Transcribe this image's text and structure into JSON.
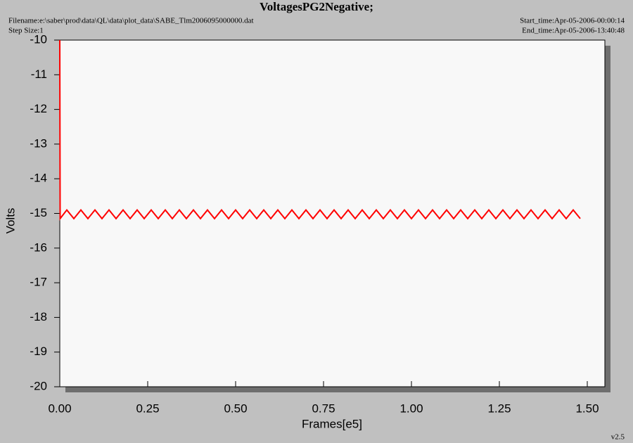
{
  "chart_data": {
    "type": "line",
    "title": "VoltagesPG2Negative;",
    "filename": "Filename:e:\\saber\\prod\\data\\QL\\data\\plot_data\\SABE_Tlm2006095000000.dat",
    "step_size": "Step Size:1",
    "start_time": "Start_time:Apr-05-2006-00:00:14",
    "end_time": "End_time:Apr-05-2006-13:40:48",
    "version": "v2.5",
    "x_label": "Frames[e5]",
    "y_label": "Volts",
    "xlim": [
      0,
      1.55
    ],
    "ylim": [
      -20,
      -10
    ],
    "xticks": [
      {
        "value": 0,
        "label": "0.00"
      },
      {
        "value": 0.25,
        "label": "0.25"
      },
      {
        "value": 0.5,
        "label": "0.50"
      },
      {
        "value": 0.75,
        "label": "0.75"
      },
      {
        "value": 1,
        "label": "1.00"
      },
      {
        "value": 1.25,
        "label": "1.25"
      },
      {
        "value": 1.5,
        "label": "1.50"
      }
    ],
    "yticks": [
      -10,
      -11,
      -12,
      -13,
      -14,
      -15,
      -16,
      -17,
      -18,
      -19,
      -20
    ],
    "x": [
      0,
      0.001,
      0.02,
      0.04,
      0.06,
      0.08,
      0.1,
      0.12,
      0.14,
      0.16,
      0.18,
      0.2,
      0.22,
      0.24,
      0.26,
      0.28,
      0.3,
      0.32,
      0.34,
      0.36,
      0.38,
      0.4,
      0.42,
      0.44,
      0.46,
      0.48,
      0.5,
      0.52,
      0.54,
      0.56,
      0.58,
      0.6,
      0.62,
      0.64,
      0.66,
      0.68,
      0.7,
      0.72,
      0.74,
      0.76,
      0.78,
      0.8,
      0.82,
      0.84,
      0.86,
      0.88,
      0.9,
      0.92,
      0.94,
      0.96,
      0.98,
      1,
      1.02,
      1.04,
      1.06,
      1.08,
      1.1,
      1.12,
      1.14,
      1.16,
      1.18,
      1.2,
      1.22,
      1.24,
      1.26,
      1.28,
      1.3,
      1.32,
      1.34,
      1.36,
      1.38,
      1.4,
      1.42,
      1.44,
      1.46,
      1.48
    ],
    "series": [
      {
        "name": "VoltagesPG2Negative",
        "color": "#ff0000",
        "values": [
          -10,
          -15.15,
          -14.9,
          -15.15,
          -14.9,
          -15.15,
          -14.9,
          -15.15,
          -14.9,
          -15.15,
          -14.9,
          -15.15,
          -14.9,
          -15.15,
          -14.9,
          -15.15,
          -14.9,
          -15.15,
          -14.9,
          -15.15,
          -14.9,
          -15.15,
          -14.9,
          -15.15,
          -14.9,
          -15.15,
          -14.9,
          -15.15,
          -14.9,
          -15.15,
          -14.9,
          -15.15,
          -14.9,
          -15.15,
          -14.9,
          -15.15,
          -14.9,
          -15.15,
          -14.9,
          -15.15,
          -14.9,
          -15.15,
          -14.9,
          -15.15,
          -14.9,
          -15.15,
          -14.9,
          -15.15,
          -14.9,
          -15.15,
          -14.9,
          -15.15,
          -14.9,
          -15.15,
          -14.9,
          -15.15,
          -14.9,
          -15.15,
          -14.9,
          -15.15,
          -14.9,
          -15.15,
          -14.9,
          -15.15,
          -14.9,
          -15.15,
          -14.9,
          -15.15,
          -14.9,
          -15.15,
          -14.9,
          -15.15,
          -14.9,
          -15.15,
          -14.9,
          -15.15
        ]
      }
    ]
  }
}
